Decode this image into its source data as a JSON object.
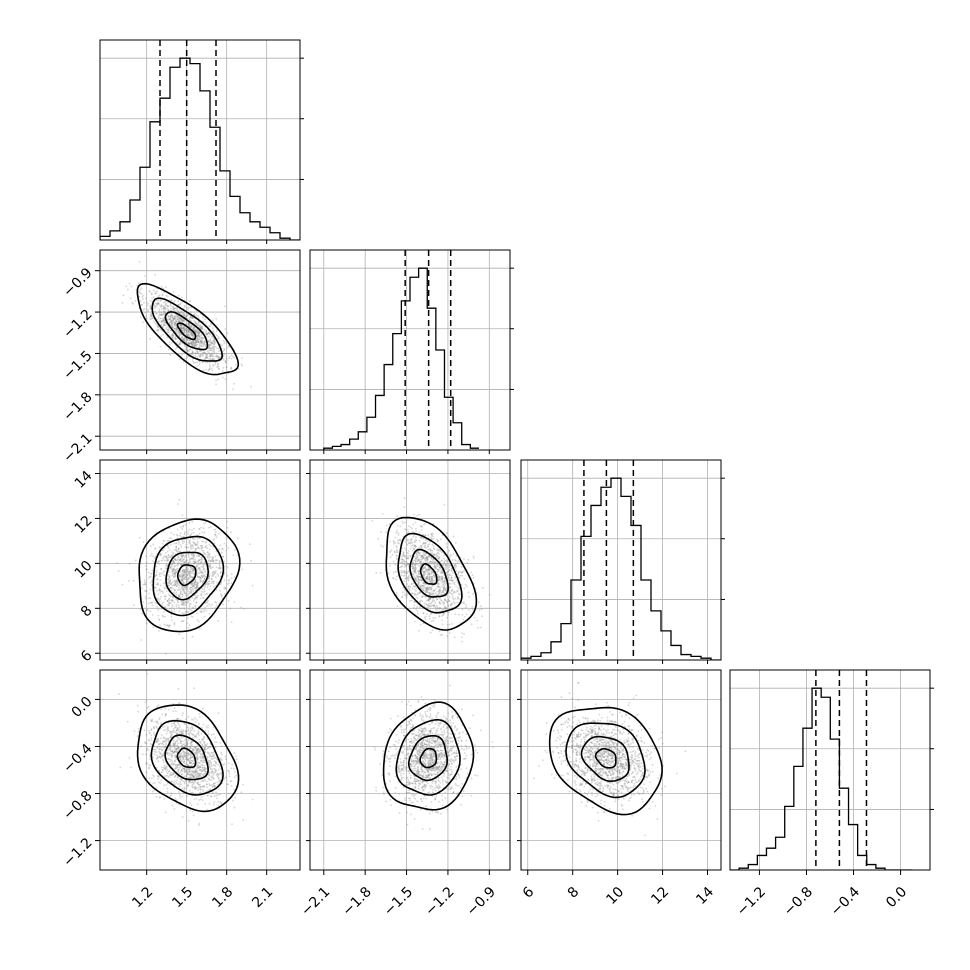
{
  "chart_data": {
    "type": "corner",
    "n_params": 4,
    "grid": true,
    "quantile_lines": "dashed",
    "hist_color": "#000000",
    "scatter_color": "#8a8a8a",
    "parameters": [
      {
        "range": [
          0.85,
          2.35
        ],
        "ticks": [
          1.2,
          1.5,
          1.8,
          2.1
        ],
        "tick_labels": [
          "1.2",
          "1.5",
          "1.8",
          "2.1"
        ],
        "quantiles": [
          1.3,
          1.5,
          1.72
        ],
        "hist_edges_start": 0.85,
        "hist_bin_width": 0.075,
        "hist_counts": [
          2,
          5,
          10,
          22,
          40,
          65,
          78,
          95,
          100,
          97,
          82,
          62,
          38,
          24,
          15,
          10,
          7,
          4,
          1,
          0
        ]
      },
      {
        "range": [
          -2.2,
          -0.75
        ],
        "ticks": [
          -2.1,
          -1.8,
          -1.5,
          -1.2,
          -0.9
        ],
        "tick_labels": [
          "−2.1",
          "−1.8",
          "−1.5",
          "−1.2",
          "−0.9"
        ],
        "quantiles": [
          -1.51,
          -1.34,
          -1.18
        ],
        "hist_edges_start": -2.1,
        "hist_bin_width": 0.0625,
        "hist_counts": [
          1,
          2,
          3,
          6,
          10,
          18,
          30,
          47,
          64,
          82,
          95,
          100,
          78,
          55,
          29,
          15,
          3,
          1
        ]
      },
      {
        "range": [
          5.7,
          14.6
        ],
        "ticks": [
          6,
          8,
          10,
          12,
          14
        ],
        "tick_labels": [
          "6",
          "8",
          "10",
          "12",
          "14"
        ],
        "quantiles": [
          8.5,
          9.5,
          10.7
        ],
        "hist_edges_start": 5.7,
        "hist_bin_width": 0.445,
        "hist_counts": [
          1,
          2,
          4,
          10,
          20,
          44,
          68,
          85,
          95,
          100,
          90,
          74,
          44,
          27,
          16,
          8,
          3,
          2,
          1,
          0
        ]
      },
      {
        "range": [
          -1.45,
          0.25
        ],
        "ticks": [
          -1.2,
          -0.8,
          -0.4,
          0.0
        ],
        "tick_labels": [
          "−1.2",
          "−0.8",
          "−0.4",
          "0.0"
        ],
        "quantiles": [
          -0.72,
          -0.52,
          -0.29
        ],
        "hist_edges_start": -1.45,
        "hist_bin_width": 0.0775,
        "hist_counts": [
          0,
          1,
          3,
          8,
          12,
          18,
          35,
          57,
          78,
          100,
          95,
          72,
          45,
          25,
          8,
          3,
          1,
          0,
          0,
          0
        ]
      }
    ],
    "left_axis_ticks": {
      "row1": {
        "ticks": [
          -0.9,
          -1.2,
          -1.5,
          -1.8,
          -2.1
        ],
        "tick_labels": [
          "−0.9",
          "−1.2",
          "−1.5",
          "−1.8",
          "−2.1"
        ]
      },
      "row2": {
        "ticks": [
          14,
          12,
          10,
          8,
          6
        ],
        "tick_labels": [
          "14",
          "12",
          "10",
          "8",
          "6"
        ]
      },
      "row3": {
        "ticks": [
          0.0,
          -0.4,
          -0.8,
          -1.2
        ],
        "tick_labels": [
          "0.0",
          "−0.4",
          "−0.8",
          "−1.2"
        ]
      }
    },
    "pairs": [
      {
        "row": 1,
        "col": 0,
        "mean": [
          1.5,
          -1.34
        ],
        "sd": [
          0.15,
          0.13
        ],
        "corr": -0.75
      },
      {
        "row": 2,
        "col": 0,
        "mean": [
          1.5,
          9.5
        ],
        "sd": [
          0.15,
          1.0
        ],
        "corr": 0.18
      },
      {
        "row": 2,
        "col": 1,
        "mean": [
          -1.34,
          9.5
        ],
        "sd": [
          0.13,
          1.0
        ],
        "corr": -0.42
      },
      {
        "row": 3,
        "col": 0,
        "mean": [
          1.5,
          -0.5
        ],
        "sd": [
          0.15,
          0.18
        ],
        "corr": -0.3
      },
      {
        "row": 3,
        "col": 1,
        "mean": [
          -1.34,
          -0.5
        ],
        "sd": [
          0.13,
          0.18
        ],
        "corr": 0.12
      },
      {
        "row": 3,
        "col": 2,
        "mean": [
          9.5,
          -0.5
        ],
        "sd": [
          1.0,
          0.18
        ],
        "corr": -0.25
      }
    ]
  }
}
